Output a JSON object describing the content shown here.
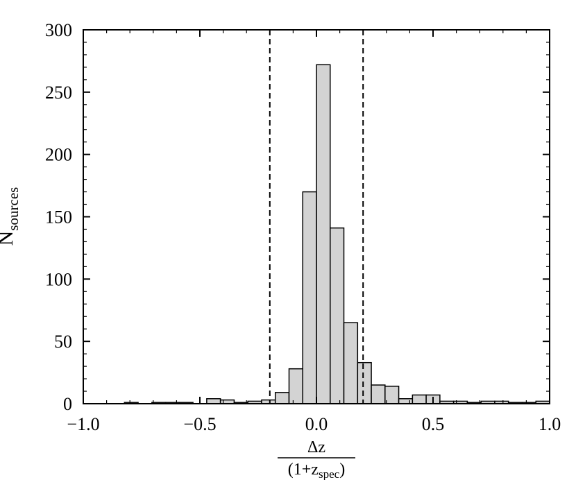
{
  "chart_data": {
    "type": "histogram",
    "xlabel": {
      "numerator": "Δz",
      "denominator": [
        "(1+z",
        "spec",
        ")"
      ]
    },
    "ylabel": {
      "base": "N",
      "sub": "sources"
    },
    "bins": [
      -1,
      -0.9412,
      -0.8824,
      -0.8235,
      -0.7647,
      -0.7059,
      -0.6471,
      -0.5882,
      -0.5294,
      -0.4706,
      -0.4118,
      -0.3529,
      -0.2941,
      -0.2353,
      -0.1765,
      -0.1176,
      -0.0588,
      0,
      0.0588,
      0.1176,
      0.1765,
      0.2353,
      0.2941,
      0.3529,
      0.4118,
      0.4706,
      0.5294,
      0.5882,
      0.6471,
      0.7059,
      0.7647,
      0.8235,
      0.8824,
      0.9412,
      1
    ],
    "values": [
      0,
      0,
      0,
      1,
      0,
      1,
      1,
      1,
      0,
      4,
      3,
      1,
      2,
      3,
      9,
      28,
      170,
      272,
      141,
      65,
      33,
      15,
      14,
      4,
      7,
      7,
      2,
      2,
      1,
      2,
      2,
      1,
      1,
      2
    ],
    "color": "#d3d3d3",
    "vlines": [
      -0.2,
      0.2
    ],
    "xlim": [
      -1,
      1
    ],
    "xticks": [
      {
        "value": -1,
        "label": "−1.0"
      },
      {
        "value": -0.5,
        "label": "−0.5"
      },
      {
        "value": 0,
        "label": "0.0"
      },
      0.5,
      {
        "value": 1,
        "label": "1.0"
      }
    ],
    "ylim": [
      0,
      300
    ],
    "yticks": [
      0,
      50,
      100,
      150,
      200,
      250,
      300
    ]
  }
}
